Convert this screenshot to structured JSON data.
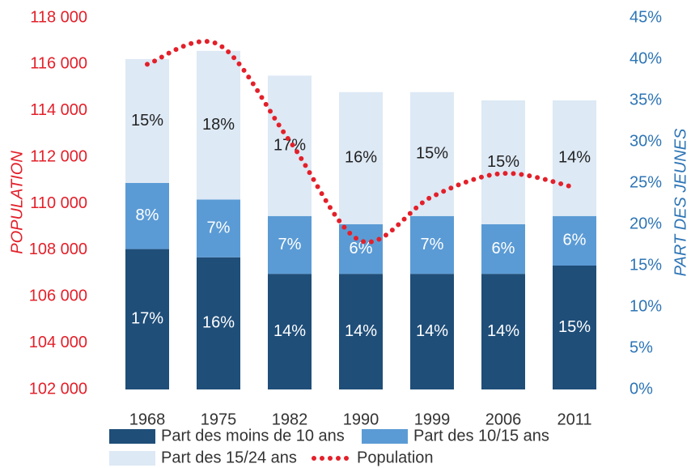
{
  "chart_data": {
    "type": "bar",
    "stacked": true,
    "categories": [
      "1968",
      "1975",
      "1982",
      "1990",
      "1999",
      "2006",
      "2011"
    ],
    "series": [
      {
        "name": "Part des moins de 10 ans",
        "color": "#1f4e79",
        "axis": "y2",
        "label_color": "#ffffff",
        "values": [
          17,
          16,
          14,
          14,
          14,
          14,
          15
        ],
        "value_labels": [
          "17%",
          "16%",
          "14%",
          "14%",
          "14%",
          "14%",
          "15%"
        ]
      },
      {
        "name": "Part des 10/15 ans",
        "color": "#5b9bd5",
        "axis": "y2",
        "label_color": "#ffffff",
        "values": [
          8,
          7,
          7,
          6,
          7,
          6,
          6
        ],
        "value_labels": [
          "8%",
          "7%",
          "7%",
          "6%",
          "7%",
          "6%",
          "6%"
        ]
      },
      {
        "name": "Part des 15/24 ans",
        "color": "#dde9f5",
        "axis": "y2",
        "label_color": "#222222",
        "values": [
          15,
          18,
          17,
          16,
          15,
          15,
          14
        ],
        "value_labels": [
          "15%",
          "18%",
          "17%",
          "16%",
          "15%",
          "15%",
          "14%"
        ]
      },
      {
        "name": "Population",
        "color": "#e3202a",
        "axis": "y",
        "type": "line",
        "line_style": "dotted",
        "values": [
          116000,
          116850,
          112700,
          108400,
          110300,
          111300,
          110700
        ]
      }
    ],
    "ylabel": "POPULATION",
    "y2label": "PART DES JEUNES",
    "ylim": [
      102000,
      118000
    ],
    "yticks": [
      {
        "value": 102000,
        "label": "102 000"
      },
      {
        "value": 104000,
        "label": "104 000"
      },
      {
        "value": 106000,
        "label": "106 000"
      },
      {
        "value": 108000,
        "label": "108 000"
      },
      {
        "value": 110000,
        "label": "110 000"
      },
      {
        "value": 112000,
        "label": "112 000"
      },
      {
        "value": 114000,
        "label": "114 000"
      },
      {
        "value": 116000,
        "label": "116 000"
      },
      {
        "value": 118000,
        "label": "118 000"
      }
    ],
    "y2lim": [
      0,
      45
    ],
    "y2ticks": [
      {
        "value": 0,
        "label": "0%"
      },
      {
        "value": 5,
        "label": "5%"
      },
      {
        "value": 10,
        "label": "10%"
      },
      {
        "value": 15,
        "label": "15%"
      },
      {
        "value": 20,
        "label": "20%"
      },
      {
        "value": 25,
        "label": "25%"
      },
      {
        "value": 30,
        "label": "30%"
      },
      {
        "value": 35,
        "label": "35%"
      },
      {
        "value": 40,
        "label": "40%"
      },
      {
        "value": 45,
        "label": "45%"
      }
    ],
    "ytick_color": "#e3202a",
    "y2tick_color": "#2e75b6",
    "grid": false,
    "legend": "bottom"
  }
}
